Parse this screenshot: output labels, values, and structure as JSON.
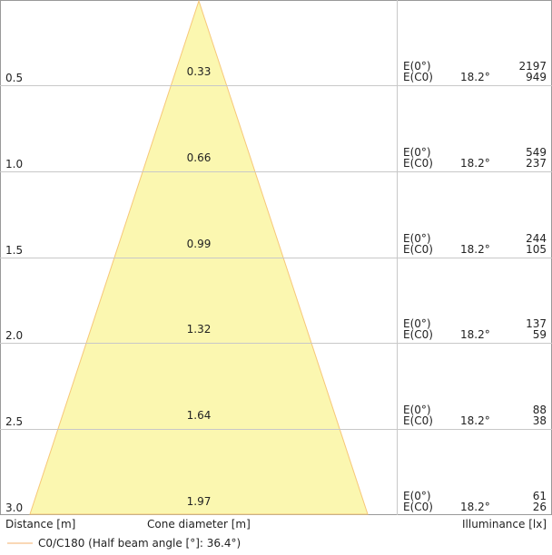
{
  "colors": {
    "cone_fill": "#fbf7b0",
    "cone_stroke": "#f7c779",
    "grid": "#c8c8c8",
    "frame": "#999999",
    "legend_line": "#f5c08a"
  },
  "labels": {
    "distance": "Distance [m]",
    "cone_diameter": "Cone diameter [m]",
    "illuminance": "Illuminance [lx]"
  },
  "legend": {
    "text": "C0/C180 (Half beam angle [°]: 36.4°)"
  },
  "chart_data": {
    "type": "table",
    "half_beam_angle_deg": 36.4,
    "rows": [
      {
        "distance": "0.5",
        "diameter": "0.33",
        "e0_label": "E(0°)",
        "ec0_label": "E(C0)",
        "angle": "18.2°",
        "e0": "2197",
        "ec0": "949"
      },
      {
        "distance": "1.0",
        "diameter": "0.66",
        "e0_label": "E(0°)",
        "ec0_label": "E(C0)",
        "angle": "18.2°",
        "e0": "549",
        "ec0": "237"
      },
      {
        "distance": "1.5",
        "diameter": "0.99",
        "e0_label": "E(0°)",
        "ec0_label": "E(C0)",
        "angle": "18.2°",
        "e0": "244",
        "ec0": "105"
      },
      {
        "distance": "2.0",
        "diameter": "1.32",
        "e0_label": "E(0°)",
        "ec0_label": "E(C0)",
        "angle": "18.2°",
        "e0": "137",
        "ec0": "59"
      },
      {
        "distance": "2.5",
        "diameter": "1.64",
        "e0_label": "E(0°)",
        "ec0_label": "E(C0)",
        "angle": "18.2°",
        "e0": "88",
        "ec0": "38"
      },
      {
        "distance": "3.0",
        "diameter": "1.97",
        "e0_label": "E(0°)",
        "ec0_label": "E(C0)",
        "angle": "18.2°",
        "e0": "61",
        "ec0": "26"
      }
    ]
  }
}
